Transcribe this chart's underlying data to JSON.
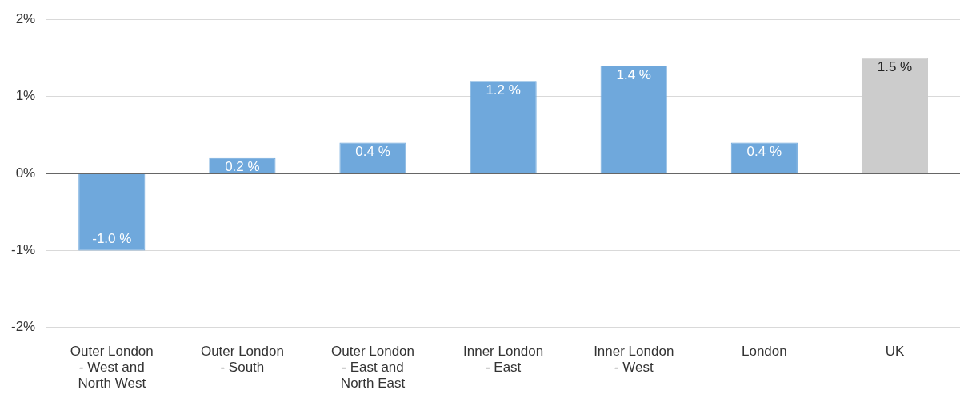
{
  "chart_data": {
    "type": "bar",
    "categories": [
      "Outer London - West and North West",
      "Outer London - South",
      "Outer London - East and North East",
      "Inner London - East",
      "Inner London - West",
      "London",
      "UK"
    ],
    "values": [
      -1.0,
      0.2,
      0.4,
      1.2,
      1.4,
      0.4,
      1.5
    ],
    "colors": [
      "#6fa8dc",
      "#6fa8dc",
      "#6fa8dc",
      "#6fa8dc",
      "#6fa8dc",
      "#6fa8dc",
      "#cccccc"
    ],
    "value_labels": [
      "-1.0 %",
      "0.2 %",
      "0.4 %",
      "1.2 %",
      "1.4 %",
      "0.4 %",
      "1.5 %"
    ],
    "ylim": [
      -2,
      2
    ],
    "yticks": [
      {
        "value": -2,
        "label": "-2%"
      },
      {
        "value": -1,
        "label": "-1%"
      },
      {
        "value": 0,
        "label": "0%"
      },
      {
        "value": 1,
        "label": "1%"
      },
      {
        "value": 2,
        "label": "2%"
      }
    ],
    "grid": "y",
    "legend": false
  }
}
